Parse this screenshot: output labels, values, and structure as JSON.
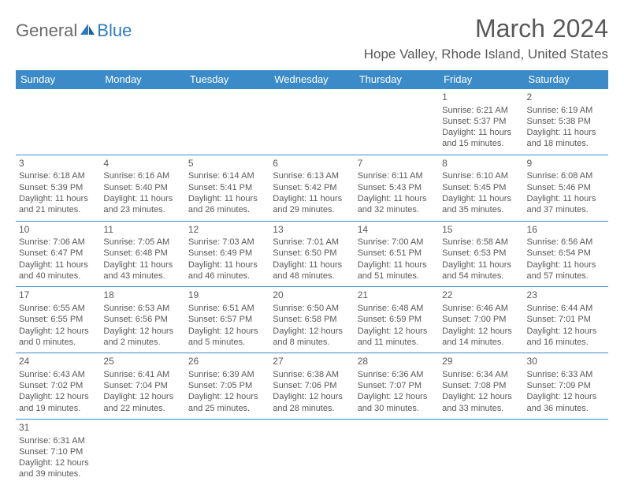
{
  "logo": {
    "text_general": "General",
    "text_blue": "Blue"
  },
  "title": "March 2024",
  "location": "Hope Valley, Rhode Island, United States",
  "colors": {
    "header_bg": "#3b8bc9",
    "header_fg": "#ffffff",
    "cell_border": "#3b8bc9",
    "text": "#595959",
    "logo_blue": "#2d7bbf"
  },
  "weekdays": [
    "Sunday",
    "Monday",
    "Tuesday",
    "Wednesday",
    "Thursday",
    "Friday",
    "Saturday"
  ],
  "weeks": [
    [
      null,
      null,
      null,
      null,
      null,
      {
        "n": "1",
        "sunrise": "Sunrise: 6:21 AM",
        "sunset": "Sunset: 5:37 PM",
        "daylight": "Daylight: 11 hours and 15 minutes."
      },
      {
        "n": "2",
        "sunrise": "Sunrise: 6:19 AM",
        "sunset": "Sunset: 5:38 PM",
        "daylight": "Daylight: 11 hours and 18 minutes."
      }
    ],
    [
      {
        "n": "3",
        "sunrise": "Sunrise: 6:18 AM",
        "sunset": "Sunset: 5:39 PM",
        "daylight": "Daylight: 11 hours and 21 minutes."
      },
      {
        "n": "4",
        "sunrise": "Sunrise: 6:16 AM",
        "sunset": "Sunset: 5:40 PM",
        "daylight": "Daylight: 11 hours and 23 minutes."
      },
      {
        "n": "5",
        "sunrise": "Sunrise: 6:14 AM",
        "sunset": "Sunset: 5:41 PM",
        "daylight": "Daylight: 11 hours and 26 minutes."
      },
      {
        "n": "6",
        "sunrise": "Sunrise: 6:13 AM",
        "sunset": "Sunset: 5:42 PM",
        "daylight": "Daylight: 11 hours and 29 minutes."
      },
      {
        "n": "7",
        "sunrise": "Sunrise: 6:11 AM",
        "sunset": "Sunset: 5:43 PM",
        "daylight": "Daylight: 11 hours and 32 minutes."
      },
      {
        "n": "8",
        "sunrise": "Sunrise: 6:10 AM",
        "sunset": "Sunset: 5:45 PM",
        "daylight": "Daylight: 11 hours and 35 minutes."
      },
      {
        "n": "9",
        "sunrise": "Sunrise: 6:08 AM",
        "sunset": "Sunset: 5:46 PM",
        "daylight": "Daylight: 11 hours and 37 minutes."
      }
    ],
    [
      {
        "n": "10",
        "sunrise": "Sunrise: 7:06 AM",
        "sunset": "Sunset: 6:47 PM",
        "daylight": "Daylight: 11 hours and 40 minutes."
      },
      {
        "n": "11",
        "sunrise": "Sunrise: 7:05 AM",
        "sunset": "Sunset: 6:48 PM",
        "daylight": "Daylight: 11 hours and 43 minutes."
      },
      {
        "n": "12",
        "sunrise": "Sunrise: 7:03 AM",
        "sunset": "Sunset: 6:49 PM",
        "daylight": "Daylight: 11 hours and 46 minutes."
      },
      {
        "n": "13",
        "sunrise": "Sunrise: 7:01 AM",
        "sunset": "Sunset: 6:50 PM",
        "daylight": "Daylight: 11 hours and 48 minutes."
      },
      {
        "n": "14",
        "sunrise": "Sunrise: 7:00 AM",
        "sunset": "Sunset: 6:51 PM",
        "daylight": "Daylight: 11 hours and 51 minutes."
      },
      {
        "n": "15",
        "sunrise": "Sunrise: 6:58 AM",
        "sunset": "Sunset: 6:53 PM",
        "daylight": "Daylight: 11 hours and 54 minutes."
      },
      {
        "n": "16",
        "sunrise": "Sunrise: 6:56 AM",
        "sunset": "Sunset: 6:54 PM",
        "daylight": "Daylight: 11 hours and 57 minutes."
      }
    ],
    [
      {
        "n": "17",
        "sunrise": "Sunrise: 6:55 AM",
        "sunset": "Sunset: 6:55 PM",
        "daylight": "Daylight: 12 hours and 0 minutes."
      },
      {
        "n": "18",
        "sunrise": "Sunrise: 6:53 AM",
        "sunset": "Sunset: 6:56 PM",
        "daylight": "Daylight: 12 hours and 2 minutes."
      },
      {
        "n": "19",
        "sunrise": "Sunrise: 6:51 AM",
        "sunset": "Sunset: 6:57 PM",
        "daylight": "Daylight: 12 hours and 5 minutes."
      },
      {
        "n": "20",
        "sunrise": "Sunrise: 6:50 AM",
        "sunset": "Sunset: 6:58 PM",
        "daylight": "Daylight: 12 hours and 8 minutes."
      },
      {
        "n": "21",
        "sunrise": "Sunrise: 6:48 AM",
        "sunset": "Sunset: 6:59 PM",
        "daylight": "Daylight: 12 hours and 11 minutes."
      },
      {
        "n": "22",
        "sunrise": "Sunrise: 6:46 AM",
        "sunset": "Sunset: 7:00 PM",
        "daylight": "Daylight: 12 hours and 14 minutes."
      },
      {
        "n": "23",
        "sunrise": "Sunrise: 6:44 AM",
        "sunset": "Sunset: 7:01 PM",
        "daylight": "Daylight: 12 hours and 16 minutes."
      }
    ],
    [
      {
        "n": "24",
        "sunrise": "Sunrise: 6:43 AM",
        "sunset": "Sunset: 7:02 PM",
        "daylight": "Daylight: 12 hours and 19 minutes."
      },
      {
        "n": "25",
        "sunrise": "Sunrise: 6:41 AM",
        "sunset": "Sunset: 7:04 PM",
        "daylight": "Daylight: 12 hours and 22 minutes."
      },
      {
        "n": "26",
        "sunrise": "Sunrise: 6:39 AM",
        "sunset": "Sunset: 7:05 PM",
        "daylight": "Daylight: 12 hours and 25 minutes."
      },
      {
        "n": "27",
        "sunrise": "Sunrise: 6:38 AM",
        "sunset": "Sunset: 7:06 PM",
        "daylight": "Daylight: 12 hours and 28 minutes."
      },
      {
        "n": "28",
        "sunrise": "Sunrise: 6:36 AM",
        "sunset": "Sunset: 7:07 PM",
        "daylight": "Daylight: 12 hours and 30 minutes."
      },
      {
        "n": "29",
        "sunrise": "Sunrise: 6:34 AM",
        "sunset": "Sunset: 7:08 PM",
        "daylight": "Daylight: 12 hours and 33 minutes."
      },
      {
        "n": "30",
        "sunrise": "Sunrise: 6:33 AM",
        "sunset": "Sunset: 7:09 PM",
        "daylight": "Daylight: 12 hours and 36 minutes."
      }
    ],
    [
      {
        "n": "31",
        "sunrise": "Sunrise: 6:31 AM",
        "sunset": "Sunset: 7:10 PM",
        "daylight": "Daylight: 12 hours and 39 minutes."
      },
      null,
      null,
      null,
      null,
      null,
      null
    ]
  ]
}
